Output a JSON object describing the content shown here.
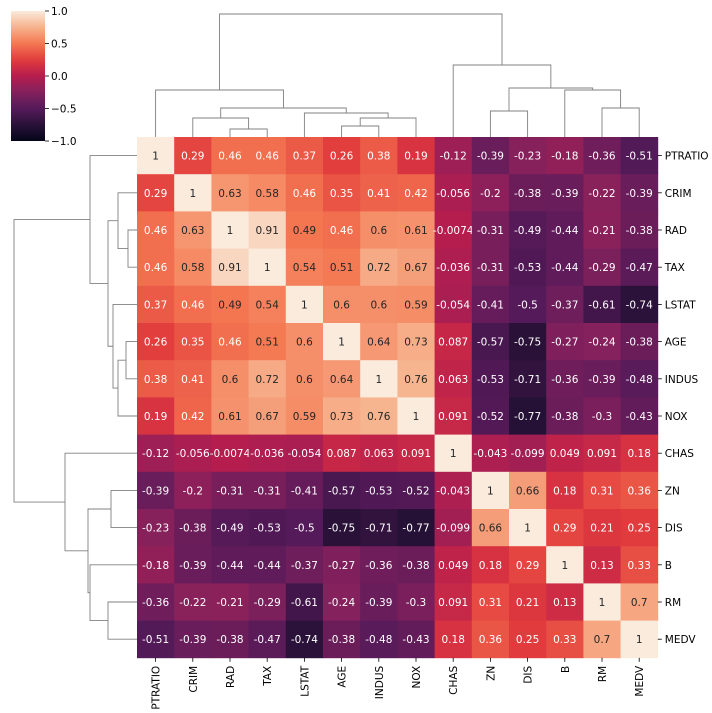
{
  "chart_data": {
    "type": "heatmap",
    "title": "",
    "row_labels": [
      "PTRATIO",
      "CRIM",
      "RAD",
      "TAX",
      "LSTAT",
      "AGE",
      "INDUS",
      "NOX",
      "CHAS",
      "ZN",
      "DIS",
      "B",
      "RM",
      "MEDV"
    ],
    "col_labels": [
      "PTRATIO",
      "CRIM",
      "RAD",
      "TAX",
      "LSTAT",
      "AGE",
      "INDUS",
      "NOX",
      "CHAS",
      "ZN",
      "DIS",
      "B",
      "RM",
      "MEDV"
    ],
    "values": [
      [
        1,
        0.29,
        0.46,
        0.46,
        0.37,
        0.26,
        0.38,
        0.19,
        -0.12,
        -0.39,
        -0.23,
        -0.18,
        -0.36,
        -0.51
      ],
      [
        0.29,
        1,
        0.63,
        0.58,
        0.46,
        0.35,
        0.41,
        0.42,
        -0.056,
        -0.2,
        -0.38,
        -0.39,
        -0.22,
        -0.39
      ],
      [
        0.46,
        0.63,
        1,
        0.91,
        0.49,
        0.46,
        0.6,
        0.61,
        -0.0074,
        -0.31,
        -0.49,
        -0.44,
        -0.21,
        -0.38
      ],
      [
        0.46,
        0.58,
        0.91,
        1,
        0.54,
        0.51,
        0.72,
        0.67,
        -0.036,
        -0.31,
        -0.53,
        -0.44,
        -0.29,
        -0.47
      ],
      [
        0.37,
        0.46,
        0.49,
        0.54,
        1,
        0.6,
        0.6,
        0.59,
        -0.054,
        -0.41,
        -0.5,
        -0.37,
        -0.61,
        -0.74
      ],
      [
        0.26,
        0.35,
        0.46,
        0.51,
        0.6,
        1,
        0.64,
        0.73,
        0.087,
        -0.57,
        -0.75,
        -0.27,
        -0.24,
        -0.38
      ],
      [
        0.38,
        0.41,
        0.6,
        0.72,
        0.6,
        0.64,
        1,
        0.76,
        0.063,
        -0.53,
        -0.71,
        -0.36,
        -0.39,
        -0.48
      ],
      [
        0.19,
        0.42,
        0.61,
        0.67,
        0.59,
        0.73,
        0.76,
        1,
        0.091,
        -0.52,
        -0.77,
        -0.38,
        -0.3,
        -0.43
      ],
      [
        -0.12,
        -0.056,
        -0.0074,
        -0.036,
        -0.054,
        0.087,
        0.063,
        0.091,
        1,
        -0.043,
        -0.099,
        0.049,
        0.091,
        0.18
      ],
      [
        -0.39,
        -0.2,
        -0.31,
        -0.31,
        -0.41,
        -0.57,
        -0.53,
        -0.52,
        -0.043,
        1,
        0.66,
        0.18,
        0.31,
        0.36
      ],
      [
        -0.23,
        -0.38,
        -0.49,
        -0.53,
        -0.5,
        -0.75,
        -0.71,
        -0.77,
        -0.099,
        0.66,
        1,
        0.29,
        0.21,
        0.25
      ],
      [
        -0.18,
        -0.39,
        -0.44,
        -0.44,
        -0.37,
        -0.27,
        -0.36,
        -0.38,
        0.049,
        0.18,
        0.29,
        1,
        0.13,
        0.33
      ],
      [
        -0.36,
        -0.22,
        -0.21,
        -0.29,
        -0.61,
        -0.24,
        -0.39,
        -0.3,
        0.091,
        0.31,
        0.21,
        0.13,
        1,
        0.7
      ],
      [
        -0.51,
        -0.39,
        -0.38,
        -0.47,
        -0.74,
        -0.38,
        -0.48,
        -0.43,
        0.18,
        0.36,
        0.25,
        0.33,
        0.7,
        1
      ]
    ],
    "colorbar": {
      "vmin": -1,
      "vmax": 1,
      "ticks": [
        1,
        0.5,
        0,
        -0.5,
        -1
      ],
      "tick_labels": [
        "1.0",
        "0.5",
        "0.0",
        "−0.5",
        "−1.0"
      ],
      "colormap": "rocket"
    },
    "dendrogram": {
      "rows": true,
      "columns": true
    }
  }
}
